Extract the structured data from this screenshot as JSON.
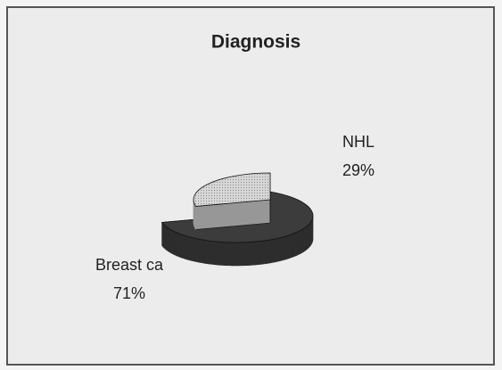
{
  "chart_data": {
    "type": "pie",
    "title": "Diagnosis",
    "categories": [
      "Breast ca",
      "NHL"
    ],
    "values": [
      71,
      29
    ],
    "value_labels": [
      "71%",
      "29%"
    ],
    "colors": [
      "#3c3c3c",
      "#c9c9c9"
    ]
  }
}
